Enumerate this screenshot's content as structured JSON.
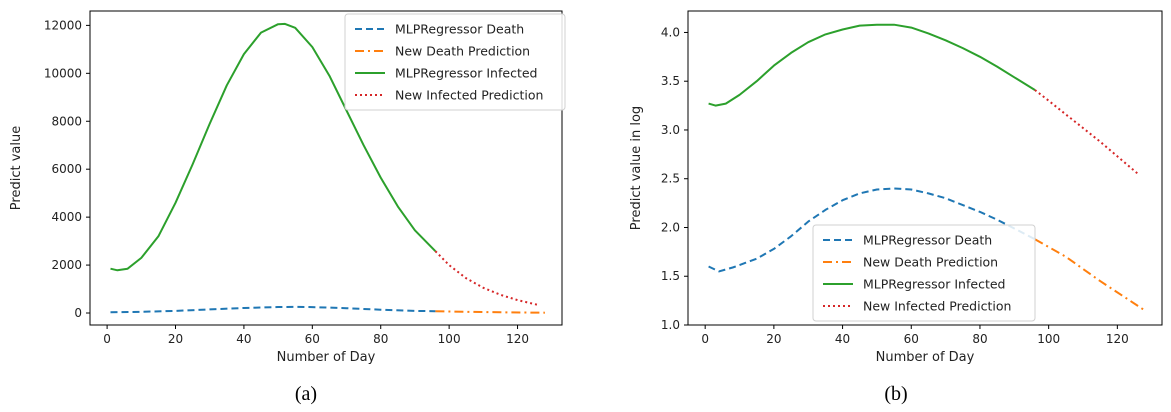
{
  "chart_data": [
    {
      "type": "line",
      "caption": "(a)",
      "xlabel": "Number of Day",
      "ylabel": "Predict value",
      "xlim": [
        -5,
        133
      ],
      "ylim": [
        -500,
        12600
      ],
      "xticks": [
        0,
        20,
        40,
        60,
        80,
        100,
        120
      ],
      "yticks": [
        0,
        2000,
        4000,
        6000,
        8000,
        10000,
        12000
      ],
      "grid": false,
      "legend_position": "top-right",
      "series": [
        {
          "name": "MLPRegressor Death",
          "color": "#1f77b4",
          "style": "dashed",
          "x": [
            1,
            10,
            20,
            30,
            40,
            50,
            55,
            60,
            70,
            80,
            90,
            96
          ],
          "y": [
            30,
            50,
            90,
            150,
            210,
            250,
            255,
            245,
            200,
            140,
            90,
            75
          ]
        },
        {
          "name": "New Death Prediction",
          "color": "#ff7f0e",
          "style": "dashdot",
          "x": [
            96,
            105,
            115,
            128
          ],
          "y": [
            75,
            50,
            30,
            15
          ]
        },
        {
          "name": "MLPRegressor Infected",
          "color": "#2ca02c",
          "style": "solid",
          "x": [
            1,
            3,
            6,
            10,
            15,
            20,
            25,
            30,
            35,
            40,
            45,
            50,
            52,
            55,
            60,
            65,
            70,
            75,
            80,
            85,
            90,
            96
          ],
          "y": [
            1850,
            1780,
            1850,
            2300,
            3200,
            4600,
            6200,
            7900,
            9500,
            10800,
            11700,
            12050,
            12060,
            11900,
            11100,
            9900,
            8450,
            7000,
            5650,
            4450,
            3450,
            2580
          ]
        },
        {
          "name": "New Infected Prediction",
          "color": "#d62728",
          "style": "dotted",
          "x": [
            96,
            100,
            105,
            110,
            115,
            120,
            126
          ],
          "y": [
            2580,
            2000,
            1450,
            1050,
            760,
            540,
            340
          ]
        }
      ]
    },
    {
      "type": "line",
      "caption": "(b)",
      "xlabel": "Number of Day",
      "ylabel": "Predict value in log",
      "xlim": [
        -5,
        133
      ],
      "ylim": [
        1.0,
        4.22
      ],
      "xticks": [
        0,
        20,
        40,
        60,
        80,
        100,
        120
      ],
      "yticks": [
        1.0,
        1.5,
        2.0,
        2.5,
        3.0,
        3.5,
        4.0
      ],
      "ytick_labels": [
        "1.0",
        "1.5",
        "2.0",
        "2.5",
        "3.0",
        "3.5",
        "4.0"
      ],
      "grid": false,
      "legend_position": "bottom-center",
      "series": [
        {
          "name": "MLPRegressor Death",
          "color": "#1f77b4",
          "style": "dashed",
          "x": [
            1,
            4,
            8,
            15,
            20,
            25,
            30,
            35,
            40,
            45,
            50,
            55,
            60,
            65,
            70,
            75,
            80,
            85,
            90,
            96
          ],
          "y": [
            1.6,
            1.55,
            1.59,
            1.68,
            1.78,
            1.91,
            2.06,
            2.18,
            2.28,
            2.35,
            2.39,
            2.4,
            2.39,
            2.35,
            2.3,
            2.23,
            2.16,
            2.08,
            1.99,
            1.88
          ]
        },
        {
          "name": "New Death Prediction",
          "color": "#ff7f0e",
          "style": "dashdot",
          "x": [
            96,
            105,
            115,
            128
          ],
          "y": [
            1.88,
            1.7,
            1.45,
            1.15
          ]
        },
        {
          "name": "MLPRegressor Infected",
          "color": "#2ca02c",
          "style": "solid",
          "x": [
            1,
            3,
            6,
            10,
            15,
            20,
            25,
            30,
            35,
            40,
            45,
            50,
            52,
            55,
            60,
            65,
            70,
            75,
            80,
            85,
            90,
            96
          ],
          "y": [
            3.27,
            3.25,
            3.27,
            3.36,
            3.5,
            3.66,
            3.79,
            3.9,
            3.98,
            4.03,
            4.07,
            4.08,
            4.08,
            4.08,
            4.05,
            3.99,
            3.92,
            3.84,
            3.75,
            3.65,
            3.54,
            3.41
          ]
        },
        {
          "name": "New Infected Prediction",
          "color": "#d62728",
          "style": "dotted",
          "x": [
            96,
            100,
            105,
            110,
            115,
            120,
            126
          ],
          "y": [
            3.41,
            3.3,
            3.16,
            3.02,
            2.88,
            2.73,
            2.55
          ]
        }
      ]
    }
  ]
}
